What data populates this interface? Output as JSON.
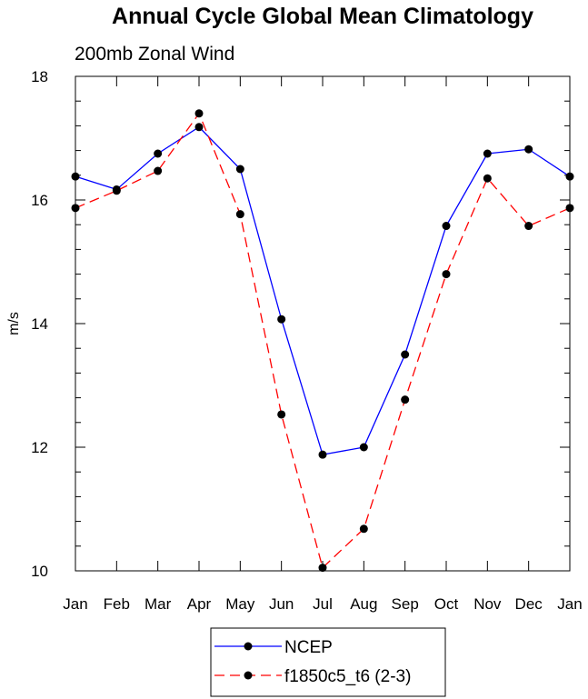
{
  "chart_data": {
    "type": "line",
    "title": "Annual Cycle Global Mean Climatology",
    "subtitle": "200mb Zonal Wind",
    "xlabel": "",
    "ylabel": "m/s",
    "categories": [
      "Jan",
      "Feb",
      "Mar",
      "Apr",
      "May",
      "Jun",
      "Jul",
      "Aug",
      "Sep",
      "Oct",
      "Nov",
      "Dec",
      "Jan"
    ],
    "ylim": [
      10,
      18
    ],
    "yticks": [
      10,
      12,
      14,
      16,
      18
    ],
    "ytick_labels": [
      "10",
      "12",
      "14",
      "16",
      "18"
    ],
    "grid": false,
    "legend_position": "bottom-center",
    "series": [
      {
        "name": "NCEP",
        "color": "#0000ff",
        "line_style": "solid",
        "marker": "filled-circle",
        "values": [
          16.38,
          16.17,
          16.75,
          17.18,
          16.5,
          14.07,
          11.88,
          12.0,
          13.5,
          15.58,
          16.75,
          16.82,
          16.38
        ]
      },
      {
        "name": "f1850c5_t6 (2-3)",
        "color": "#ff0000",
        "line_style": "dashed",
        "marker": "filled-circle",
        "values": [
          15.87,
          16.15,
          16.47,
          17.4,
          15.77,
          12.53,
          10.05,
          10.68,
          12.77,
          14.8,
          16.35,
          15.58,
          15.87
        ]
      }
    ]
  }
}
